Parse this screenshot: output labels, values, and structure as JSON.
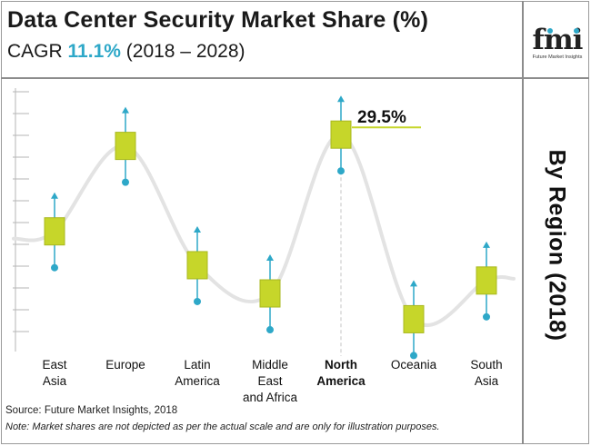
{
  "header": {
    "title": "Data Center Security Market Share (%)",
    "cagr_label": "CAGR",
    "cagr_value": "11.1%",
    "period": "(2018 – 2028)"
  },
  "logo": {
    "mark": "fmi",
    "tagline": "Future Market Insights"
  },
  "side_label": "By Region (2018)",
  "footer": {
    "source": "Source: Future Market Insights, 2018",
    "note": "Note: Market shares are not depicted as per the actual scale and are only for illustration purposes."
  },
  "colors": {
    "marker": "#c6d62a",
    "marker_border": "#a9b81f",
    "accent": "#2ea8c8",
    "curve": "#e3e3e3",
    "highlight": "#c6d62a"
  },
  "chart_data": {
    "type": "line",
    "title": "Data Center Security Market Share (%)",
    "ylabel": "",
    "xlabel": "",
    "ylim": [
      0,
      40
    ],
    "highlight": {
      "category_index": 4,
      "label": "29.5%"
    },
    "categories": [
      {
        "lines": [
          "East",
          "Asia"
        ],
        "bold": false
      },
      {
        "lines": [
          "Europe"
        ],
        "bold": false
      },
      {
        "lines": [
          "Latin",
          "America"
        ],
        "bold": false
      },
      {
        "lines": [
          "Middle",
          "East",
          "and Africa"
        ],
        "bold": false
      },
      {
        "lines": [
          "North",
          "America"
        ],
        "bold": true
      },
      {
        "lines": [
          "Oceania"
        ],
        "bold": false
      },
      {
        "lines": [
          "South",
          "Asia"
        ],
        "bold": false
      }
    ],
    "values": [
      17.5,
      28.1,
      13.3,
      9.8,
      29.5,
      6.6,
      11.4
    ]
  }
}
